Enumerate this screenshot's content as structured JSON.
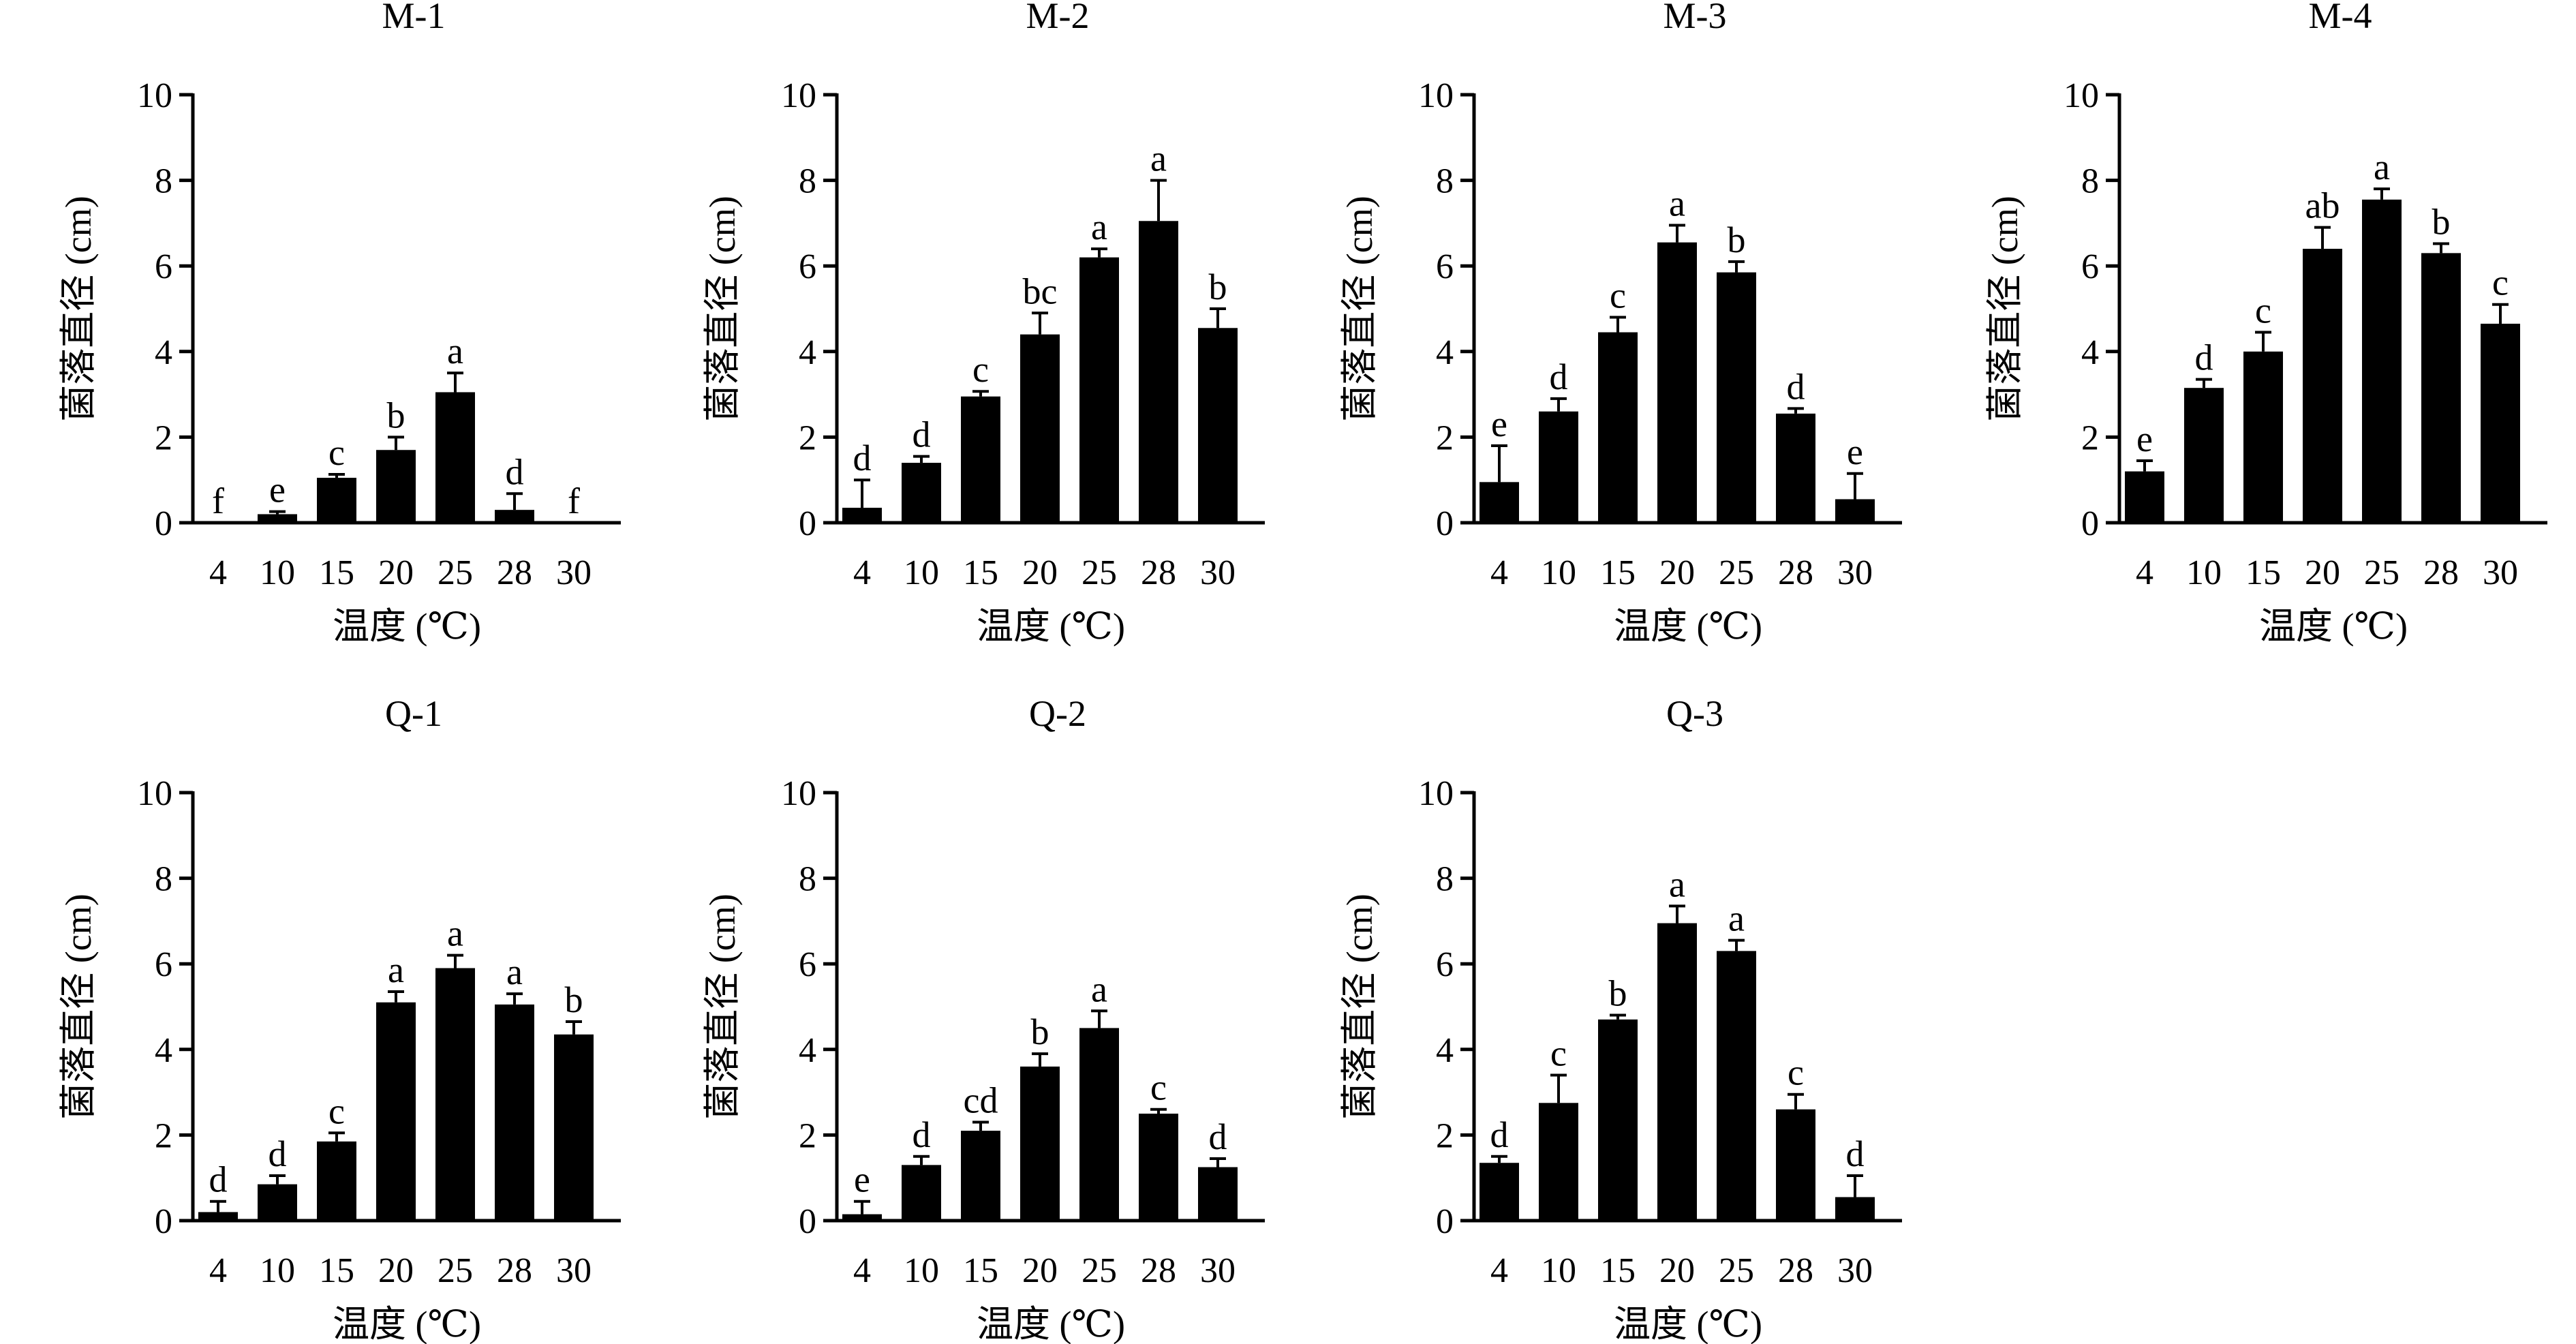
{
  "figure": {
    "bar_color": "#000000",
    "background": "#ffffff"
  },
  "chart_data": [
    {
      "type": "bar",
      "title": "M-1",
      "categories": [
        "4",
        "10",
        "15",
        "20",
        "25",
        "28",
        "30"
      ],
      "values": [
        0,
        0.2,
        1.05,
        1.7,
        3.05,
        0.3,
        0
      ],
      "errors": [
        0,
        0.06,
        0.08,
        0.3,
        0.45,
        0.38,
        0
      ],
      "letters": [
        "f",
        "e",
        "c",
        "b",
        "a",
        "d",
        "f"
      ],
      "xlabel": "温度 (℃)",
      "ylabel": "菌落直径 (cm)",
      "ylim": [
        0,
        10
      ],
      "yticks": [
        0,
        2,
        4,
        6,
        8,
        10
      ]
    },
    {
      "type": "bar",
      "title": "M-2",
      "categories": [
        "4",
        "10",
        "15",
        "20",
        "25",
        "28",
        "30"
      ],
      "values": [
        0.35,
        1.4,
        2.95,
        4.4,
        6.2,
        7.05,
        4.55
      ],
      "errors": [
        0.65,
        0.15,
        0.12,
        0.5,
        0.2,
        0.95,
        0.45
      ],
      "letters": [
        "d",
        "d",
        "c",
        "bc",
        "a",
        "a",
        "b"
      ],
      "xlabel": "温度 (℃)",
      "ylabel": "菌落直径 (cm)",
      "ylim": [
        0,
        10
      ],
      "yticks": [
        0,
        2,
        4,
        6,
        8,
        10
      ]
    },
    {
      "type": "bar",
      "title": "M-3",
      "categories": [
        "4",
        "10",
        "15",
        "20",
        "25",
        "28",
        "30"
      ],
      "values": [
        0.95,
        2.6,
        4.45,
        6.55,
        5.85,
        2.55,
        0.55
      ],
      "errors": [
        0.85,
        0.3,
        0.35,
        0.4,
        0.25,
        0.12,
        0.6
      ],
      "letters": [
        "e",
        "d",
        "c",
        "a",
        "b",
        "d",
        "e"
      ],
      "xlabel": "温度 (℃)",
      "ylabel": "菌落直径 (cm)",
      "ylim": [
        0,
        10
      ],
      "yticks": [
        0,
        2,
        4,
        6,
        8,
        10
      ]
    },
    {
      "type": "bar",
      "title": "M-4",
      "categories": [
        "4",
        "10",
        "15",
        "20",
        "25",
        "28",
        "30"
      ],
      "values": [
        1.2,
        3.15,
        4.0,
        6.4,
        7.55,
        6.3,
        4.65
      ],
      "errors": [
        0.25,
        0.2,
        0.45,
        0.5,
        0.25,
        0.22,
        0.45
      ],
      "letters": [
        "e",
        "d",
        "c",
        "ab",
        "a",
        "b",
        "c"
      ],
      "xlabel": "温度 (℃)",
      "ylabel": "菌落直径 (cm)",
      "ylim": [
        0,
        10
      ],
      "yticks": [
        0,
        2,
        4,
        6,
        8,
        10
      ]
    },
    {
      "type": "bar",
      "title": "Q-1",
      "categories": [
        "4",
        "10",
        "15",
        "20",
        "25",
        "28",
        "30"
      ],
      "values": [
        0.2,
        0.85,
        1.85,
        5.1,
        5.9,
        5.05,
        4.35
      ],
      "errors": [
        0.25,
        0.2,
        0.2,
        0.25,
        0.3,
        0.25,
        0.3
      ],
      "letters": [
        "d",
        "d",
        "c",
        "a",
        "a",
        "a",
        "b"
      ],
      "xlabel": "温度 (℃)",
      "ylabel": "菌落直径 (cm)",
      "ylim": [
        0,
        10
      ],
      "yticks": [
        0,
        2,
        4,
        6,
        8,
        10
      ]
    },
    {
      "type": "bar",
      "title": "Q-2",
      "categories": [
        "4",
        "10",
        "15",
        "20",
        "25",
        "28",
        "30"
      ],
      "values": [
        0.15,
        1.3,
        2.1,
        3.6,
        4.5,
        2.5,
        1.25
      ],
      "errors": [
        0.3,
        0.2,
        0.2,
        0.3,
        0.4,
        0.1,
        0.2
      ],
      "letters": [
        "e",
        "d",
        "cd",
        "b",
        "a",
        "c",
        "d"
      ],
      "xlabel": "温度 (℃)",
      "ylabel": "菌落直径 (cm)",
      "ylim": [
        0,
        10
      ],
      "yticks": [
        0,
        2,
        4,
        6,
        8,
        10
      ]
    },
    {
      "type": "bar",
      "title": "Q-3",
      "categories": [
        "4",
        "10",
        "15",
        "20",
        "25",
        "28",
        "30"
      ],
      "values": [
        1.35,
        2.75,
        4.7,
        6.95,
        6.3,
        2.6,
        0.55
      ],
      "errors": [
        0.15,
        0.65,
        0.1,
        0.4,
        0.25,
        0.35,
        0.5
      ],
      "letters": [
        "d",
        "c",
        "b",
        "a",
        "a",
        "c",
        "d"
      ],
      "xlabel": "温度 (℃)",
      "ylabel": "菌落直径 (cm)",
      "ylim": [
        0,
        10
      ],
      "yticks": [
        0,
        2,
        4,
        6,
        8,
        10
      ]
    }
  ]
}
